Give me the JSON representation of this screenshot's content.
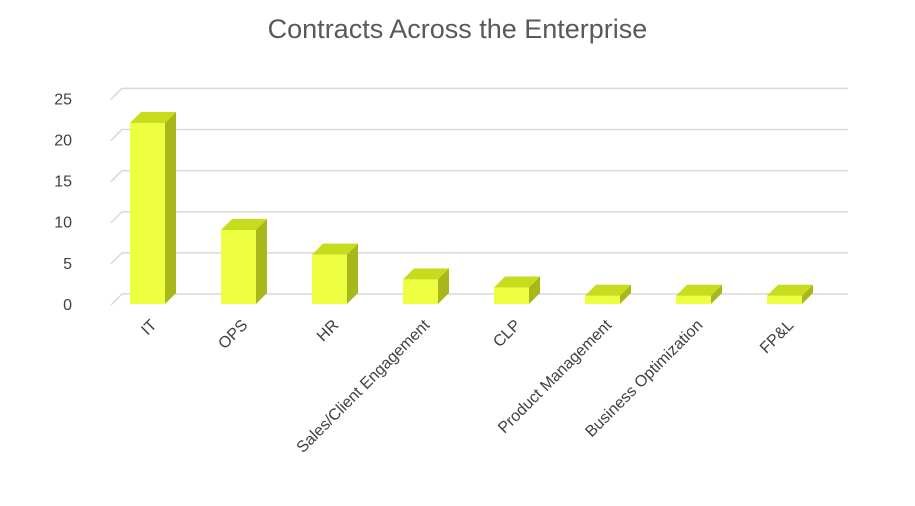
{
  "chart_data": {
    "type": "bar",
    "title": "Contracts Across the Enterprise",
    "categories": [
      "IT",
      "OPS",
      "HR",
      "Sales/Client Engagement",
      "CLP",
      "Product Management",
      "Business Optimization",
      "FP&L"
    ],
    "values": [
      22,
      9,
      6,
      3,
      2,
      1,
      1,
      1
    ],
    "ylim": [
      0,
      25
    ],
    "yticks": [
      0,
      5,
      10,
      15,
      20,
      25
    ],
    "grid": true,
    "legend": "none",
    "style": "3d",
    "colors": {
      "front": "#eeff41",
      "top": "#c8dc1e",
      "side": "#a8b81a",
      "grid": "#d9d9d9",
      "text": "#404040",
      "title": "#595959"
    }
  }
}
